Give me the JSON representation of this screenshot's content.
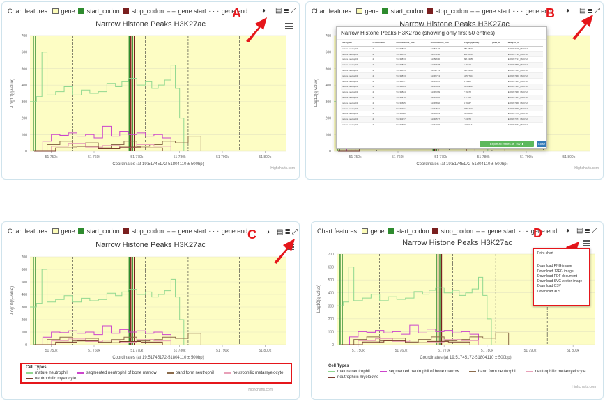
{
  "features_label": "Chart features:",
  "features": [
    {
      "key": "gene",
      "label": "gene"
    },
    {
      "key": "start",
      "label": "start_codon"
    },
    {
      "key": "stop",
      "label": "stop_codon"
    },
    {
      "key": "gstart",
      "label": "gene start"
    },
    {
      "key": "gend",
      "label": "gene end"
    }
  ],
  "panels": {
    "A": {
      "letter": "A"
    },
    "B": {
      "letter": "B"
    },
    "C": {
      "letter": "C"
    },
    "D": {
      "letter": "D"
    }
  },
  "chart_data": [
    {
      "type": "line",
      "title": "Narrow Histone Peaks H3K27ac",
      "xlabel": "Coordinates (at 19:51745172-51804110 ± 500bp)",
      "ylabel": "-Log10(q-value)",
      "ylim": [
        0,
        700
      ],
      "xlim": [
        51745000,
        51805000
      ],
      "yticks": [
        "0",
        "100",
        "200",
        "300",
        "400",
        "500",
        "600",
        "700"
      ],
      "xticks": [
        "51 750k",
        "51 760k",
        "51 770k",
        "51 780k",
        "51 790k",
        "51 800k"
      ],
      "grid": true,
      "legend_title": "Cell Types",
      "series": [
        {
          "name": "mature neutrophil",
          "color": "#90d890",
          "x": [
            51745000,
            51746500,
            51747800,
            51749000,
            51751000,
            51753000,
            51755000,
            51757000,
            51759000,
            51761000,
            51763000,
            51765000,
            51766500,
            51768000,
            51770000,
            51772000,
            51773500,
            51775000,
            51776500,
            51778000,
            51779000,
            51780000,
            51781000
          ],
          "values": [
            300,
            330,
            600,
            340,
            360,
            390,
            340,
            370,
            350,
            360,
            410,
            390,
            420,
            440,
            400,
            420,
            380,
            400,
            430,
            520,
            380,
            200,
            0
          ]
        },
        {
          "name": "segmented neutrophil of bone marrow",
          "color": "#cc44cc",
          "x": [
            51746000,
            51748000,
            51750000,
            51752000,
            51754000,
            51756000,
            51758000,
            51760000,
            51762000,
            51764000,
            51766000,
            51768000,
            51770000,
            51772000,
            51774000,
            51776000,
            51778000
          ],
          "values": [
            0,
            60,
            100,
            95,
            110,
            90,
            100,
            80,
            150,
            90,
            120,
            100,
            110,
            90,
            100,
            80,
            0
          ]
        },
        {
          "name": "band form neutrophil",
          "color": "#8b6b4b",
          "x": [
            51746000,
            51749000,
            51752000,
            51755000,
            51758000,
            51761000,
            51764000,
            51767000,
            51770000,
            51773000,
            51776000,
            51779000,
            51782000,
            51785000
          ],
          "values": [
            0,
            40,
            60,
            30,
            50,
            20,
            40,
            60,
            30,
            40,
            60,
            50,
            90,
            0
          ]
        },
        {
          "name": "neutrophilic metamyelocyte",
          "color": "#e8a0b8",
          "x": [
            51746000,
            51750000,
            51754000,
            51758000,
            51762000,
            51766000,
            51770000,
            51774000,
            51778000
          ],
          "values": [
            0,
            30,
            45,
            25,
            35,
            20,
            40,
            30,
            0
          ]
        },
        {
          "name": "neutrophilic myelocyte",
          "color": "#7a3b2e",
          "x": [
            51746000,
            51751000,
            51756000,
            51761000,
            51766000,
            51771000,
            51776000
          ],
          "values": [
            0,
            20,
            30,
            15,
            25,
            20,
            0
          ]
        }
      ]
    }
  ],
  "credits": "Highcharts.com",
  "modal": {
    "title": "Narrow Histone Peaks H3K27ac (showing only first 50 entries)",
    "columns": [
      "Cell Types",
      "chromosome",
      "chromosome_start",
      "chromosome_end",
      "-Log10(q-value)",
      "peak_id",
      "analysis_id"
    ],
    "rows": [
      [
        "mature neutrophil",
        "19",
        "51744873",
        "51757137",
        "484.58677",
        "",
        "ERX337715_MACS2"
      ],
      [
        "mature neutrophil",
        "19",
        "51744873",
        "51757186",
        "489.28133",
        "",
        "ERX337716_MACS2"
      ],
      [
        "mature neutrophil",
        "19",
        "51744873",
        "51758690",
        "398.24459",
        "",
        "ERX337717_MACS2"
      ],
      [
        "mature neutrophil",
        "19",
        "51744873",
        "51746688",
        "6.46712",
        "",
        "ERX337856_MACS2"
      ],
      [
        "mature neutrophil",
        "19",
        "51744873",
        "51758723",
        "336.44399",
        "",
        "ERX337859_MACS2"
      ],
      [
        "mature neutrophil",
        "19",
        "51744873",
        "51745713",
        "10.57744",
        "",
        "ERX337860_MACS2"
      ],
      [
        "mature neutrophil",
        "19",
        "51744877",
        "51744870",
        "4.74888",
        "",
        "ERX337863_MACS2"
      ],
      [
        "mature neutrophil",
        "19",
        "51744844",
        "51745044",
        "10.35999",
        "",
        "ERX337865_MACS2"
      ],
      [
        "mature neutrophil",
        "19",
        "51744844",
        "51745399",
        "7.79878",
        "",
        "ERX337866_MACS2"
      ],
      [
        "mature neutrophil",
        "19",
        "51745270",
        "51745820",
        "6.77209",
        "",
        "ERX337867_MACS2"
      ],
      [
        "mature neutrophil",
        "19",
        "51745665",
        "51745860",
        "4.79567",
        "",
        "ERX337868_MACS2"
      ],
      [
        "mature neutrophil",
        "19",
        "51745731",
        "51747571",
        "22.56453",
        "",
        "ERX337869_MACS2"
      ],
      [
        "mature neutrophil",
        "19",
        "51746088",
        "51746833",
        "16.10693",
        "",
        "ERX337870_MACS2"
      ],
      [
        "mature neutrophil",
        "19",
        "51746377",
        "51746577",
        "7.23073",
        "",
        "ERX337871_MACS2"
      ],
      [
        "mature neutrophil",
        "19",
        "51746699",
        "51747033",
        "11.36017",
        "",
        "ERX337872_MACS2"
      ]
    ],
    "export_label": "Export all entries as TSV ⬇",
    "close_label": "Close"
  },
  "menu": {
    "items": [
      "Print chart",
      "Download PNG image",
      "Download JPEG image",
      "Download PDF document",
      "Download SVG vector image",
      "Download CSV",
      "Download XLS"
    ]
  },
  "icons": {
    "eye": "eye-icon",
    "table": "table-icon",
    "list": "list-icon",
    "expand": "expand-icon",
    "menu": "hamburger-menu-icon"
  },
  "colors": {
    "accent": "#e5161b",
    "plot_bg": "#fdfdc4",
    "start_codon": "#2e8b2e",
    "stop_codon": "#7a1f1f"
  }
}
